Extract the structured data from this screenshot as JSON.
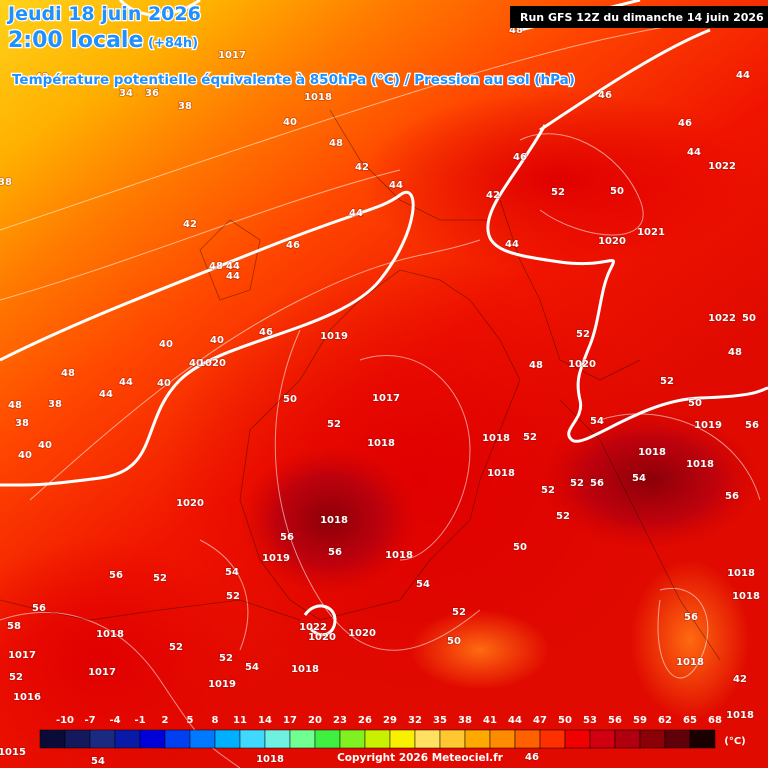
{
  "header": {
    "date": "Jeudi 18 juin 2026",
    "time": "2:00 locale",
    "lead": "(+84h)",
    "subtitle": "Température potentielle équivalente à 850hPa (°C) / Pression au sol (hPa)",
    "run": "Run GFS 12Z du dimanche 14 juin 2026"
  },
  "map": {
    "contour_labels": [
      "1017",
      "34",
      "36",
      "38",
      "1018",
      "40",
      "48",
      "46",
      "44",
      "42",
      "46",
      "48",
      "42",
      "44",
      "44",
      "42",
      "38",
      "46",
      "44",
      "1022",
      "52",
      "50",
      "1021",
      "1020",
      "42",
      "44",
      "48",
      "44",
      "44",
      "46",
      "46",
      "1019",
      "52",
      "1022",
      "50",
      "48",
      "40",
      "40",
      "40",
      "1020",
      "48",
      "44",
      "40",
      "44",
      "48",
      "38",
      "38",
      "40",
      "40",
      "50",
      "1017",
      "48",
      "1020",
      "52",
      "50",
      "52",
      "1018",
      "1018",
      "52",
      "54",
      "1019",
      "56",
      "1018",
      "1018",
      "1018",
      "52",
      "52",
      "56",
      "54",
      "56",
      "1020",
      "1018",
      "52",
      "56",
      "56",
      "1018",
      "50",
      "1019",
      "56",
      "52",
      "54",
      "54",
      "52",
      "1018",
      "1018",
      "56",
      "58",
      "52",
      "56",
      "1018",
      "1022",
      "1020",
      "1020",
      "52",
      "50",
      "52",
      "1017",
      "54",
      "1018",
      "1017",
      "1018",
      "1019",
      "52",
      "1016",
      "1018",
      "54",
      "46",
      "1015",
      "1018",
      "42"
    ]
  },
  "scale": {
    "labels": [
      "-10",
      "-7",
      "-4",
      "-1",
      "2",
      "5",
      "8",
      "11",
      "14",
      "17",
      "20",
      "23",
      "26",
      "29",
      "32",
      "35",
      "38",
      "41",
      "44",
      "47",
      "50",
      "53",
      "56",
      "59",
      "62",
      "65",
      "68"
    ],
    "colors": [
      "#0b0b3a",
      "#14185c",
      "#1a2a80",
      "#0a1aa8",
      "#0000d8",
      "#0040f0",
      "#0078ff",
      "#00b0ff",
      "#40d8ff",
      "#70f0e0",
      "#70ff90",
      "#40f040",
      "#80f020",
      "#c8f000",
      "#f8f000",
      "#ffe060",
      "#ffc830",
      "#ffa800",
      "#ff8c00",
      "#ff6000",
      "#ff3000",
      "#f00000",
      "#d00010",
      "#b00010",
      "#8c0008",
      "#600008",
      "#1a0000"
    ],
    "unit": "(°C)"
  },
  "footer": {
    "copyright": "Copyright 2026 Meteociel.fr"
  }
}
